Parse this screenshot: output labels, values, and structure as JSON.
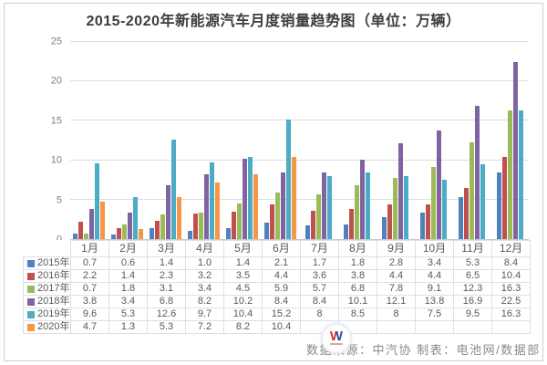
{
  "title": "2015-2020年新能源汽车月度销量趋势图（单位：万辆）",
  "footer": {
    "source_note": "数据来源：中汽协  制表：电池网/数据部",
    "watermark_letter": "W"
  },
  "chart_data": {
    "type": "bar",
    "title": "2015-2020年新能源汽车月度销量趋势图（单位：万辆）",
    "unit": "万辆",
    "categories": [
      "1月",
      "2月",
      "3月",
      "4月",
      "5月",
      "6月",
      "7月",
      "8月",
      "9月",
      "10月",
      "11月",
      "12月"
    ],
    "yticks": [
      0,
      5,
      10,
      15,
      20,
      25
    ],
    "ylim": [
      0,
      25
    ],
    "grid": true,
    "legend_position": "table-left",
    "series": [
      {
        "name": "2015年",
        "color": "#4F81BD",
        "values": [
          0.7,
          0.6,
          1.4,
          1.0,
          1.4,
          2.1,
          1.7,
          1.8,
          2.8,
          3.4,
          5.3,
          8.4
        ],
        "display": [
          "0.7",
          "0.6",
          "1.4",
          "1.0",
          "1.4",
          "2.1",
          "1.7",
          "1.8",
          "2.8",
          "3.4",
          "5.3",
          "8.4"
        ]
      },
      {
        "name": "2016年",
        "color": "#C0504D",
        "values": [
          2.2,
          1.4,
          2.3,
          3.2,
          3.5,
          4.4,
          3.6,
          3.8,
          4.4,
          4.4,
          6.5,
          10.4
        ],
        "display": [
          "2.2",
          "1.4",
          "2.3",
          "3.2",
          "3.5",
          "4.4",
          "3.6",
          "3.8",
          "4.4",
          "4.4",
          "6.5",
          "10.4"
        ]
      },
      {
        "name": "2017年",
        "color": "#9BBB59",
        "values": [
          0.7,
          1.8,
          3.1,
          3.4,
          4.5,
          5.9,
          5.7,
          6.8,
          7.8,
          9.1,
          12.3,
          16.3
        ],
        "display": [
          "0.7",
          "1.8",
          "3.1",
          "3.4",
          "4.5",
          "5.9",
          "5.7",
          "6.8",
          "7.8",
          "9.1",
          "12.3",
          "16.3"
        ]
      },
      {
        "name": "2018年",
        "color": "#8064A2",
        "values": [
          3.8,
          3.4,
          6.8,
          8.2,
          10.2,
          8.4,
          8.4,
          10.1,
          12.1,
          13.8,
          16.9,
          22.5
        ],
        "display": [
          "3.8",
          "3.4",
          "6.8",
          "8.2",
          "10.2",
          "8.4",
          "8.4",
          "10.1",
          "12.1",
          "13.8",
          "16.9",
          "22.5"
        ]
      },
      {
        "name": "2019年",
        "color": "#4BACC6",
        "values": [
          9.6,
          5.3,
          12.6,
          9.7,
          10.4,
          15.2,
          8,
          8.5,
          8,
          7.5,
          9.5,
          16.3
        ],
        "display": [
          "9.6",
          "5.3",
          "12.6",
          "9.7",
          "10.4",
          "15.2",
          "8",
          "8.5",
          "8",
          "7.5",
          "9.5",
          "16.3"
        ]
      },
      {
        "name": "2020年",
        "color": "#F79646",
        "values": [
          4.7,
          1.3,
          5.3,
          7.2,
          8.2,
          10.4,
          null,
          null,
          null,
          null,
          null,
          null
        ],
        "display": [
          "4.7",
          "1.3",
          "5.3",
          "7.2",
          "8.2",
          "10.4",
          "",
          "",
          "",
          "",
          "",
          ""
        ]
      }
    ]
  }
}
